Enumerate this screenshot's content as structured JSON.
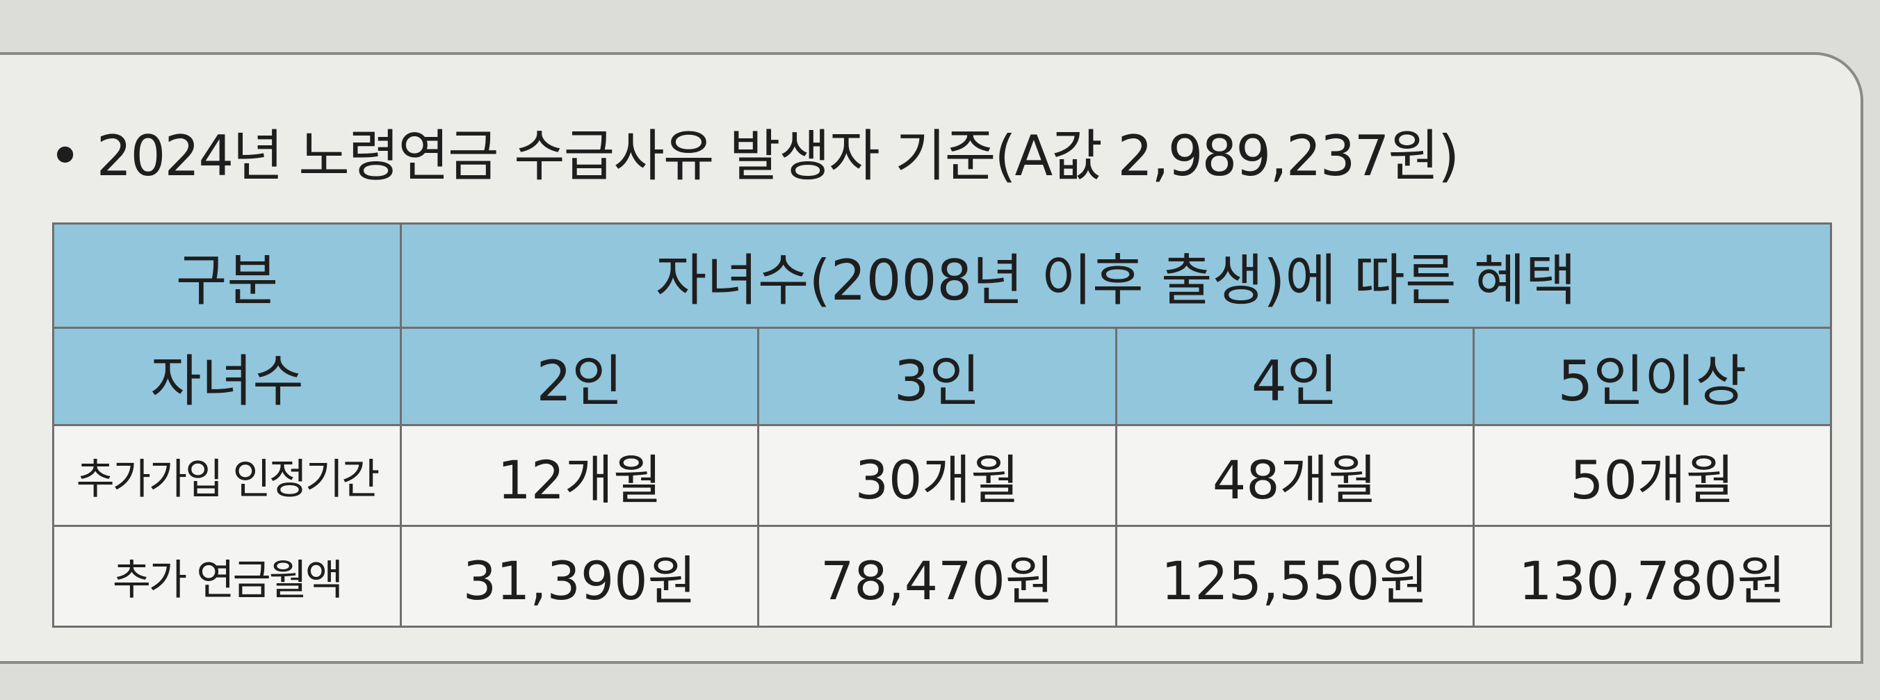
{
  "title": "• 2024년 노령연금 수급사유 발생자 기준(A값 2,989,237원)",
  "table": {
    "header": [
      "구분",
      "자녀수(2008년 이후 출생)에 따른 혜택"
    ],
    "rows": [
      [
        "자녀수",
        "2인",
        "3인",
        "4인",
        "5인이상"
      ],
      [
        "추가가입 인정기간",
        "12개월",
        "30개월",
        "48개월",
        "50개월"
      ],
      [
        "추가 연금월액",
        "31,390원",
        "78,470원",
        "125,550원",
        "130,780원"
      ]
    ]
  }
}
